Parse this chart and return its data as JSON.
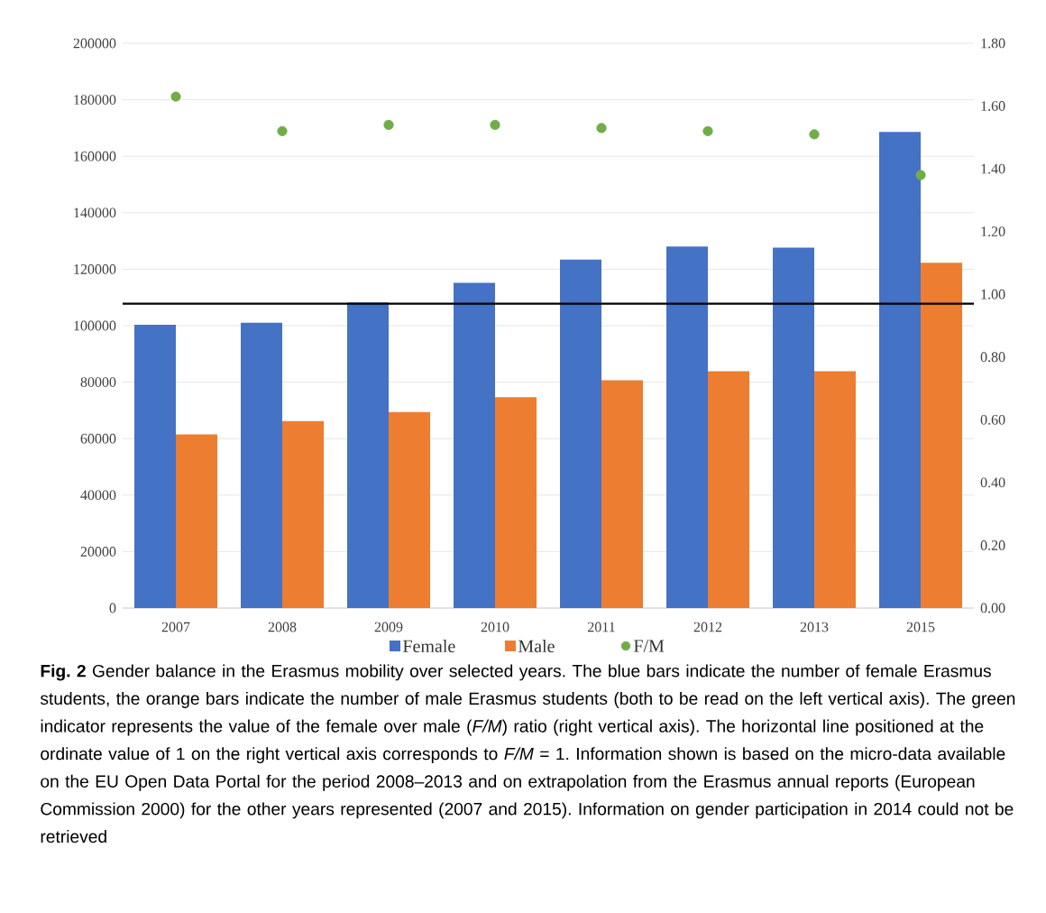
{
  "chart_data": {
    "type": "bar",
    "categories": [
      "2007",
      "2008",
      "2009",
      "2010",
      "2011",
      "2012",
      "2013",
      "2015"
    ],
    "series": [
      {
        "name": "Female",
        "color": "#4472c4",
        "values": [
          100300,
          101000,
          108200,
          115200,
          123400,
          128000,
          127600,
          168600
        ]
      },
      {
        "name": "Male",
        "color": "#ed7d31",
        "values": [
          61500,
          66200,
          69400,
          74700,
          80700,
          83900,
          83900,
          122300
        ]
      },
      {
        "name": "F/M",
        "type": "scatter",
        "axis": "y2",
        "color": "#70ad47",
        "values": [
          1.63,
          1.52,
          1.54,
          1.54,
          1.53,
          1.52,
          1.51,
          1.38
        ]
      }
    ],
    "ylim": [
      0,
      200000
    ],
    "yticks": [
      0,
      20000,
      40000,
      60000,
      80000,
      100000,
      120000,
      140000,
      160000,
      180000,
      200000
    ],
    "y2lim": [
      0,
      1.8
    ],
    "y2ticks": [
      {
        "value": 0,
        "label": "0.00"
      },
      {
        "value": 0.2,
        "label": "0.20"
      },
      {
        "value": 0.4,
        "label": "0.40"
      },
      {
        "value": 0.6,
        "label": "0.60"
      },
      {
        "value": 0.8,
        "label": "0.80"
      },
      {
        "value": 1.0,
        "label": "1.00"
      },
      {
        "value": 1.2,
        "label": "1.20"
      },
      {
        "value": 1.4,
        "label": "1.40"
      },
      {
        "value": 1.6,
        "label": "1.60"
      },
      {
        "value": 1.8,
        "label": "1.80"
      }
    ],
    "ref_lines": [
      {
        "axis": "y2",
        "value": 0.97,
        "color": "#000000"
      }
    ],
    "grid": "y",
    "legend": "bottom",
    "marker": "circle",
    "annotations": [
      "**Fig. 2** Gender balance in the Erasmus mobility over selected years. The blue bars indicate the number of female Erasmus students, the orange bars indicate the number of male Erasmus students (both to be read on the left vertical axis). The green indicator represents the value of the female over male (*F/M*) ratio (right vertical axis). The horizontal line positioned at the ordinate value of 1 on the right vertical axis corresponds to *F/M* = 1. Information shown is based on the micro-data available on the EU Open Data Portal for the period 2008–2013 and on extrapolation from the Erasmus annual reports (European Commission 2000) for the other years represented (2007 and 2015). Information on gender participation in 2014 could not be retrieved"
    ]
  }
}
